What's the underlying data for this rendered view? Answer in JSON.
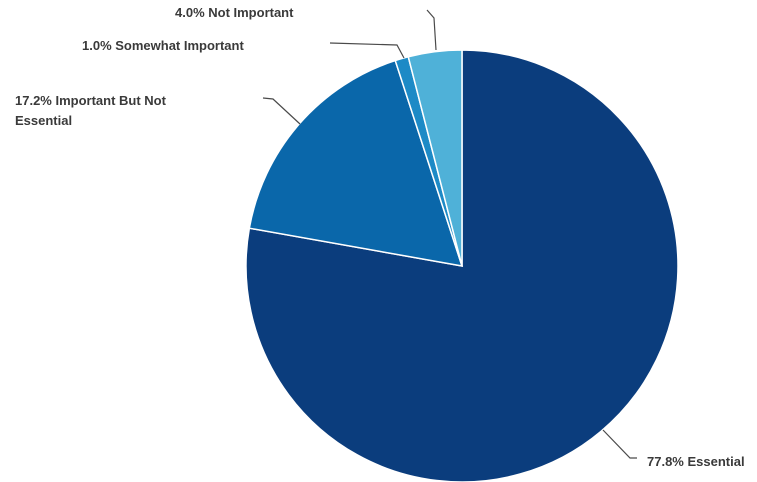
{
  "chart_data": {
    "type": "pie",
    "title": "",
    "slices": [
      {
        "label": "Essential",
        "value": 77.8,
        "display": "77.8% Essential",
        "color": "#0b3d7d"
      },
      {
        "label": "Important But Not Essential",
        "value": 17.2,
        "display_lines": [
          "17.2% Important But Not",
          "Essential"
        ],
        "color": "#0a67aa"
      },
      {
        "label": "Somewhat Important",
        "value": 1.0,
        "display": "1.0% Somewhat Important",
        "color": "#1d8ac6"
      },
      {
        "label": "Not Important",
        "value": 4.0,
        "display": "4.0% Not Important",
        "color": "#4fb1d8"
      }
    ],
    "start_angle": "12 o'clock",
    "direction": "clockwise",
    "legend": "none (direct labels with leader lines)"
  }
}
